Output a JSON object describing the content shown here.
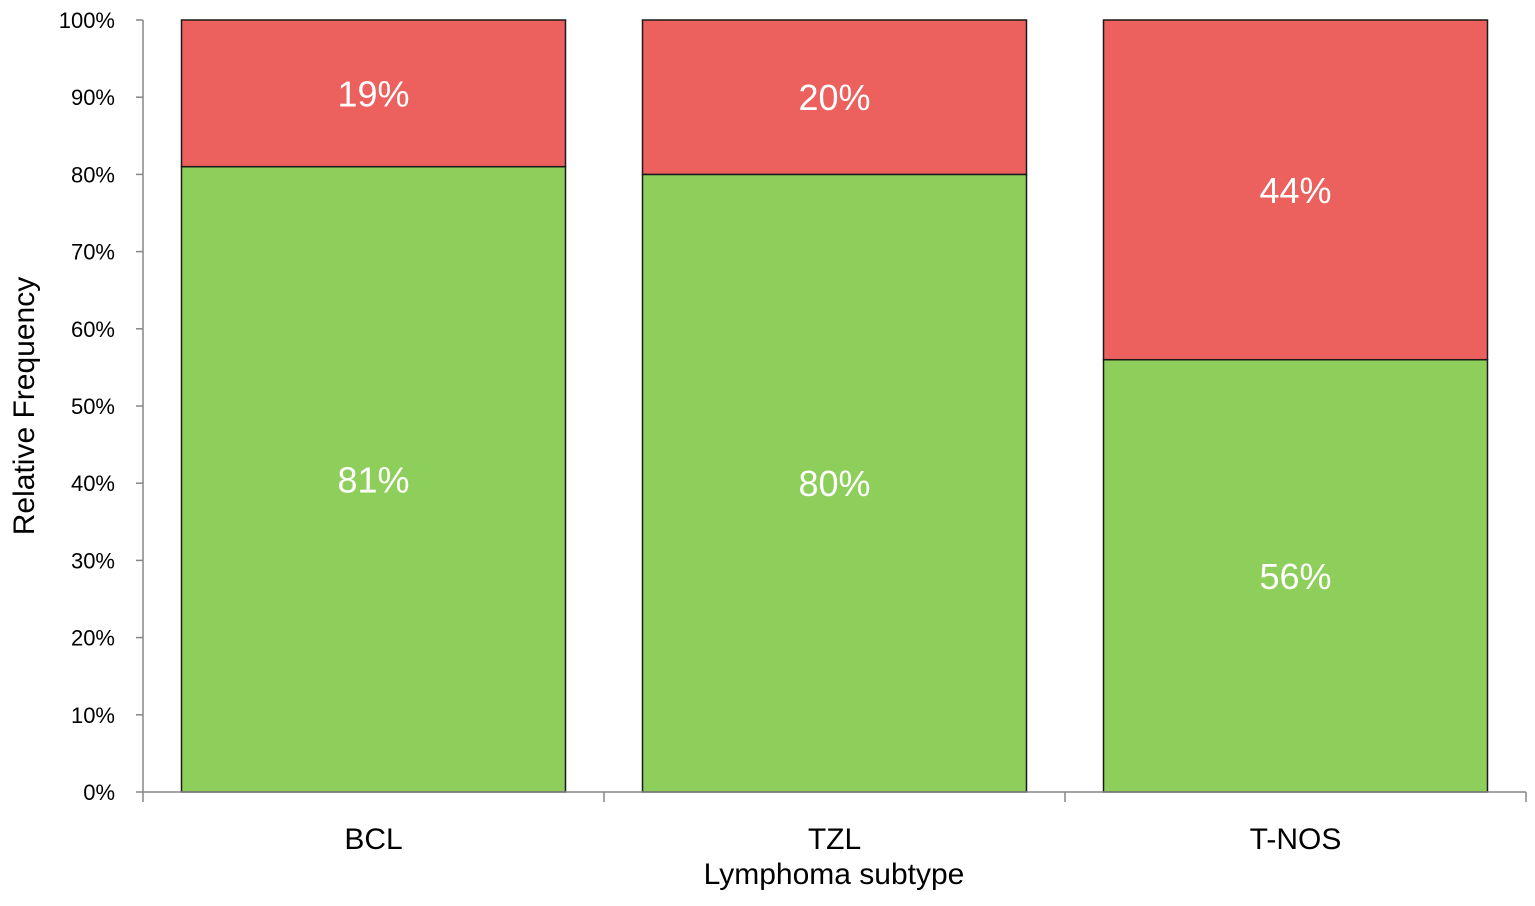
{
  "chart_data": {
    "type": "bar",
    "stacked": true,
    "categories": [
      "BCL",
      "TZL",
      "T-NOS"
    ],
    "series": [
      {
        "values": [
          81,
          80,
          56
        ],
        "labels": [
          "81%",
          "80%",
          "56%"
        ],
        "color": "#8ece5a"
      },
      {
        "values": [
          19,
          20,
          44
        ],
        "labels": [
          "19%",
          "20%",
          "44%"
        ],
        "color": "#ec605e"
      }
    ],
    "xlabel": "Lymphoma subtype",
    "ylabel": "Relative Frequency",
    "ylim": [
      0,
      100
    ],
    "yticks": [
      0,
      10,
      20,
      30,
      40,
      50,
      60,
      70,
      80,
      90,
      100
    ],
    "ytick_labels": [
      "0%",
      "10%",
      "20%",
      "30%",
      "40%",
      "50%",
      "60%",
      "70%",
      "80%",
      "90%",
      "100%"
    ],
    "grid": false,
    "legend": "none"
  }
}
